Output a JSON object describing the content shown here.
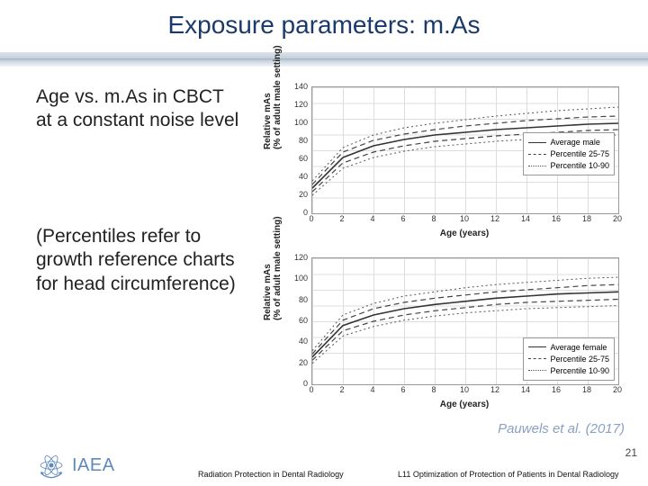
{
  "slide": {
    "title": "Exposure parameters: m.As",
    "p1": "Age vs. m.As in CBCT at a constant noise level",
    "p2": "(Percentiles refer to growth reference charts for head circumference)",
    "citation": "Pauwels et al. (2017)",
    "page_number": "21"
  },
  "footer": {
    "logo_text": "IAEA",
    "caption_left": "Radiation Protection in Dental Radiology",
    "caption_right": "L11 Optimization of Protection of Patients in Dental Radiology"
  },
  "colors": {
    "title_color": "#1b3a6b",
    "body_text_color": "#222222",
    "citation_color": "#8aa0c4",
    "logo_color": "#5e89bb",
    "grid_color": "#dddddd",
    "axis_color": "#999999",
    "background": "#ffffff"
  },
  "chart_common": {
    "x_axis_label": "Age (years)",
    "y_axis_label_line1": "Relative mAs",
    "y_axis_label_line2": "(% of adult male setting)",
    "xlim": [
      0,
      20
    ],
    "xtick_step": 2,
    "xticks": [
      0,
      2,
      4,
      6,
      8,
      10,
      12,
      14,
      16,
      18,
      20
    ],
    "line_styles": {
      "avg": {
        "color": "#333333",
        "width": 1.6,
        "dash": "none"
      },
      "p2575": {
        "color": "#444444",
        "width": 1.2,
        "dash": "6,4"
      },
      "p1090": {
        "color": "#555555",
        "width": 1.0,
        "dash": "2,3"
      }
    },
    "plot_bg": "#ffffff",
    "label_fontsize": 10,
    "tick_fontsize": 9,
    "legend_fontsize": 9
  },
  "chart_top": {
    "type": "line",
    "ylim": [
      0,
      140
    ],
    "ytick_step": 20,
    "yticks": [
      0,
      20,
      40,
      60,
      80,
      100,
      120,
      140
    ],
    "legend_pos": "right-middle",
    "legend": [
      {
        "label": "Average male",
        "style": "avg"
      },
      {
        "label": "Percentile 25-75",
        "style": "p2575"
      },
      {
        "label": "Percentile 10-90",
        "style": "p1090"
      }
    ],
    "series": {
      "avg": {
        "x": [
          0,
          2,
          4,
          6,
          8,
          10,
          12,
          14,
          16,
          18,
          20
        ],
        "y": [
          28,
          62,
          75,
          82,
          87,
          90,
          93,
          95,
          97,
          99,
          100
        ]
      },
      "p75": {
        "x": [
          0,
          2,
          4,
          6,
          8,
          10,
          12,
          14,
          16,
          18,
          20
        ],
        "y": [
          32,
          68,
          81,
          88,
          93,
          97,
          100,
          103,
          105,
          107,
          108
        ]
      },
      "p25": {
        "x": [
          0,
          2,
          4,
          6,
          8,
          10,
          12,
          14,
          16,
          18,
          20
        ],
        "y": [
          24,
          56,
          68,
          75,
          80,
          83,
          86,
          88,
          90,
          92,
          93
        ]
      },
      "p90": {
        "x": [
          0,
          2,
          4,
          6,
          8,
          10,
          12,
          14,
          16,
          18,
          20
        ],
        "y": [
          36,
          73,
          87,
          95,
          100,
          104,
          108,
          111,
          114,
          116,
          118
        ]
      },
      "p10": {
        "x": [
          0,
          2,
          4,
          6,
          8,
          10,
          12,
          14,
          16,
          18,
          20
        ],
        "y": [
          20,
          50,
          62,
          69,
          74,
          77,
          80,
          82,
          84,
          86,
          87
        ]
      }
    }
  },
  "chart_bottom": {
    "type": "line",
    "ylim": [
      0,
      120
    ],
    "ytick_step": 20,
    "yticks": [
      0,
      20,
      40,
      60,
      80,
      100,
      120
    ],
    "legend_pos": "bottom-right",
    "legend": [
      {
        "label": "Average female",
        "style": "avg"
      },
      {
        "label": "Percentile 25-75",
        "style": "p2575"
      },
      {
        "label": "Percentile 10-90",
        "style": "p1090"
      }
    ],
    "series": {
      "avg": {
        "x": [
          0,
          2,
          4,
          6,
          8,
          10,
          12,
          14,
          16,
          18,
          20
        ],
        "y": [
          26,
          56,
          66,
          72,
          76,
          79,
          82,
          84,
          86,
          87,
          88
        ]
      },
      "p75": {
        "x": [
          0,
          2,
          4,
          6,
          8,
          10,
          12,
          14,
          16,
          18,
          20
        ],
        "y": [
          29,
          61,
          72,
          78,
          82,
          85,
          88,
          90,
          92,
          94,
          95
        ]
      },
      "p25": {
        "x": [
          0,
          2,
          4,
          6,
          8,
          10,
          12,
          14,
          16,
          18,
          20
        ],
        "y": [
          23,
          51,
          60,
          66,
          70,
          73,
          76,
          78,
          79,
          80,
          81
        ]
      },
      "p90": {
        "x": [
          0,
          2,
          4,
          6,
          8,
          10,
          12,
          14,
          16,
          18,
          20
        ],
        "y": [
          32,
          66,
          77,
          84,
          88,
          92,
          95,
          97,
          99,
          101,
          102
        ]
      },
      "p10": {
        "x": [
          0,
          2,
          4,
          6,
          8,
          10,
          12,
          14,
          16,
          18,
          20
        ],
        "y": [
          20,
          46,
          55,
          61,
          65,
          68,
          70,
          72,
          73,
          74,
          75
        ]
      }
    }
  }
}
